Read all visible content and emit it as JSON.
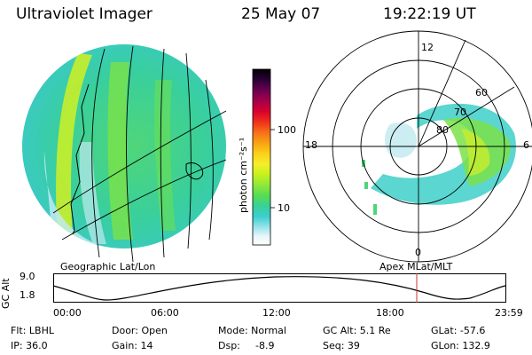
{
  "header": {
    "title": "Ultraviolet Imager",
    "date": "25 May 07",
    "time": "19:22:19 UT"
  },
  "left_panel": {
    "caption": "Geographic Lat/Lon"
  },
  "colorbar": {
    "unit_label": "photon cm⁻²s⁻¹",
    "ticks": [
      "100",
      "10"
    ],
    "colors_top_to_bottom": [
      "#000000",
      "#2b0038",
      "#6a0050",
      "#a5004a",
      "#d9002e",
      "#f0301a",
      "#f6701a",
      "#f9a312",
      "#fbd01a",
      "#f6ee2a",
      "#c4f21c",
      "#8fe83a",
      "#55dc54",
      "#38d09a",
      "#3ccfd0",
      "#9ae4ec",
      "#e6f6fa",
      "#ffffff"
    ]
  },
  "right_panel": {
    "caption": "Apex MLat/MLT",
    "mlt_labels": {
      "top": "12",
      "left": "18",
      "right": "6",
      "bottom": "0"
    },
    "mlat_labels": [
      "60",
      "70",
      "80"
    ]
  },
  "timeline": {
    "y_axis_label": "GC Alt",
    "y_ticks": [
      "9.0",
      "1.8"
    ],
    "x_ticks": [
      "00:00",
      "06:00",
      "12:00",
      "18:00",
      "23:59"
    ],
    "marker_color": "#cc3333"
  },
  "status": {
    "flt": "Flt: LBHL",
    "ip": "IP: 36.0",
    "door": "Door: Open",
    "gain": "Gain: 14",
    "mode": "Mode: Normal",
    "dsp": "Dsp:",
    "dsp_value": "-8.9",
    "gc_alt": "GC Alt: 5.1 Re",
    "seq": "Seq: 39",
    "glat": "GLat: -57.6",
    "glon": "GLon: 132.9"
  }
}
